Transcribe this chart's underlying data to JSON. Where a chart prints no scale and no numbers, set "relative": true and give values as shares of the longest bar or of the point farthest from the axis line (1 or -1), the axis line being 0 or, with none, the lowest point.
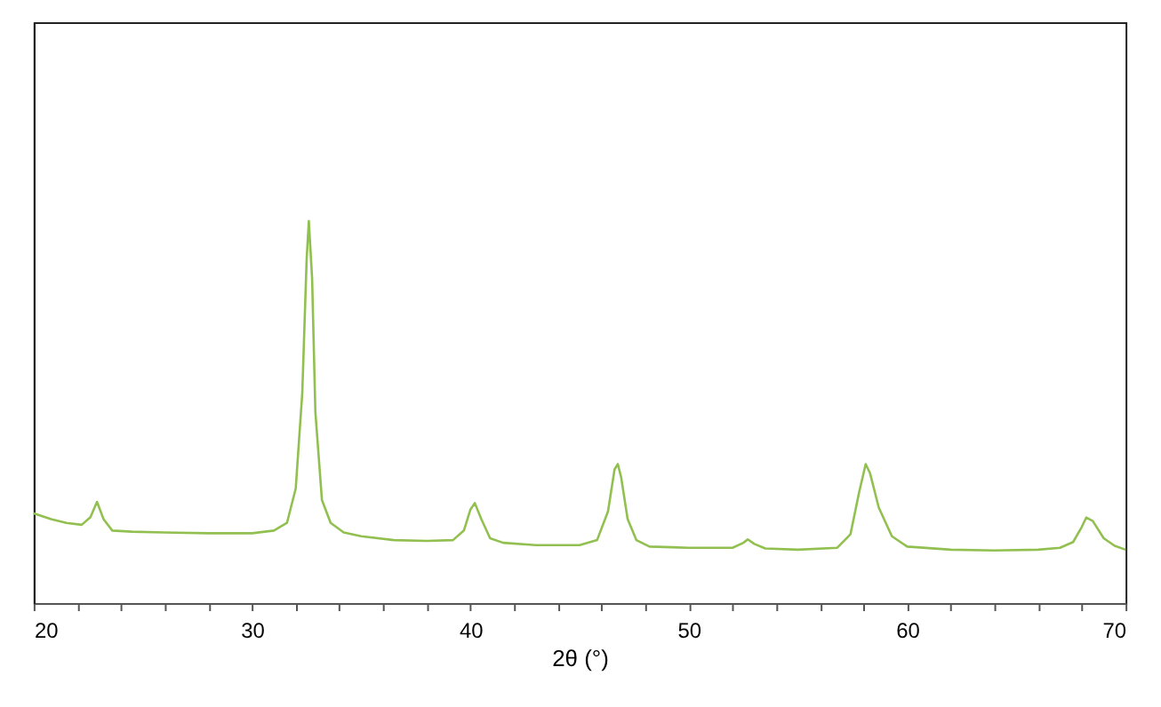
{
  "chart_data": {
    "type": "line",
    "relative": true,
    "xlabel": "2θ (°)",
    "xlim": [
      20,
      70
    ],
    "xticks": [
      20,
      {
        "value": 22,
        "label": null
      },
      {
        "value": 24,
        "label": null
      },
      {
        "value": 26,
        "label": null
      },
      {
        "value": 28,
        "label": null
      },
      30,
      {
        "value": 32,
        "label": null
      },
      {
        "value": 34,
        "label": null
      },
      {
        "value": 36,
        "label": null
      },
      {
        "value": 38,
        "label": null
      },
      40,
      {
        "value": 42,
        "label": null
      },
      {
        "value": 44,
        "label": null
      },
      {
        "value": 46,
        "label": null
      },
      {
        "value": 48,
        "label": null
      },
      50,
      {
        "value": 52,
        "label": null
      },
      {
        "value": 54,
        "label": null
      },
      {
        "value": 56,
        "label": null
      },
      {
        "value": 58,
        "label": null
      },
      60,
      {
        "value": 62,
        "label": null
      },
      {
        "value": 64,
        "label": null
      },
      {
        "value": 66,
        "label": null
      },
      {
        "value": 68,
        "label": null
      },
      70
    ],
    "grid": false,
    "marker": "none",
    "line_style": "solid",
    "series": [
      {
        "color": "#92c050",
        "x": [
          20,
          20.8,
          21.5,
          22.2,
          22.6,
          22.9,
          23.2,
          23.6,
          24.5,
          26,
          28,
          30,
          31,
          31.6,
          32.0,
          32.3,
          32.5,
          32.6,
          32.75,
          32.9,
          33.2,
          33.6,
          34.2,
          35,
          36.5,
          38,
          39.2,
          39.7,
          40.0,
          40.2,
          40.5,
          40.9,
          41.5,
          43,
          45,
          45.8,
          46.3,
          46.6,
          46.75,
          46.9,
          47.2,
          47.6,
          48.2,
          50,
          52,
          52.5,
          52.7,
          53.0,
          53.5,
          55,
          56.8,
          57.4,
          57.8,
          58.1,
          58.3,
          58.7,
          59.3,
          60,
          62,
          64,
          66,
          67,
          67.6,
          68.0,
          68.2,
          68.5,
          69.0,
          69.5,
          70
        ],
        "values": [
          0.235,
          0.22,
          0.21,
          0.205,
          0.225,
          0.265,
          0.22,
          0.19,
          0.187,
          0.185,
          0.183,
          0.183,
          0.19,
          0.21,
          0.3,
          0.55,
          0.9,
          1.0,
          0.85,
          0.5,
          0.27,
          0.21,
          0.185,
          0.175,
          0.165,
          0.163,
          0.165,
          0.19,
          0.245,
          0.262,
          0.22,
          0.17,
          0.158,
          0.152,
          0.152,
          0.165,
          0.24,
          0.35,
          0.364,
          0.33,
          0.22,
          0.165,
          0.148,
          0.145,
          0.145,
          0.158,
          0.167,
          0.155,
          0.143,
          0.14,
          0.145,
          0.18,
          0.29,
          0.364,
          0.34,
          0.25,
          0.175,
          0.148,
          0.14,
          0.138,
          0.14,
          0.145,
          0.16,
          0.2,
          0.224,
          0.215,
          0.17,
          0.15,
          0.14
        ]
      }
    ]
  }
}
